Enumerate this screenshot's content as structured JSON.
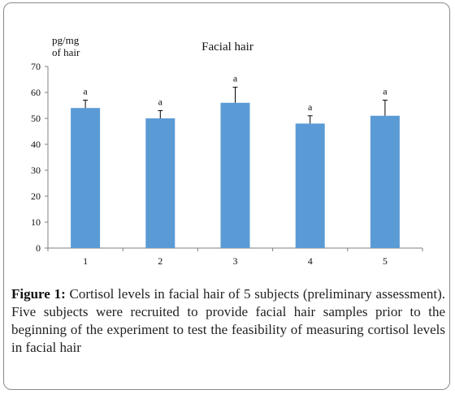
{
  "chart_data": {
    "type": "bar",
    "title": "Facial hair",
    "ylabel": "pg/mg of hair",
    "ylabel_lines": [
      "pg/mg",
      "of hair"
    ],
    "xlabel": "",
    "ylim": [
      0,
      70
    ],
    "yticks": [
      0,
      10,
      20,
      30,
      40,
      50,
      60,
      70
    ],
    "categories": [
      "1",
      "2",
      "3",
      "4",
      "5"
    ],
    "values": [
      54,
      50,
      56,
      48,
      51
    ],
    "error": [
      3,
      3,
      6,
      3,
      6
    ],
    "annotations": [
      "a",
      "a",
      "a",
      "a",
      "a"
    ],
    "bar_color": "#5B9BD5",
    "grid": false,
    "legend": "none"
  },
  "caption": {
    "label": "Figure 1:",
    "text": " Cortisol levels in facial hair of 5 subjects (preliminary assessment). Five subjects were recruited to provide facial hair samples prior to the beginning of the experiment to test the feasibility of measuring cortisol levels in facial hair"
  }
}
